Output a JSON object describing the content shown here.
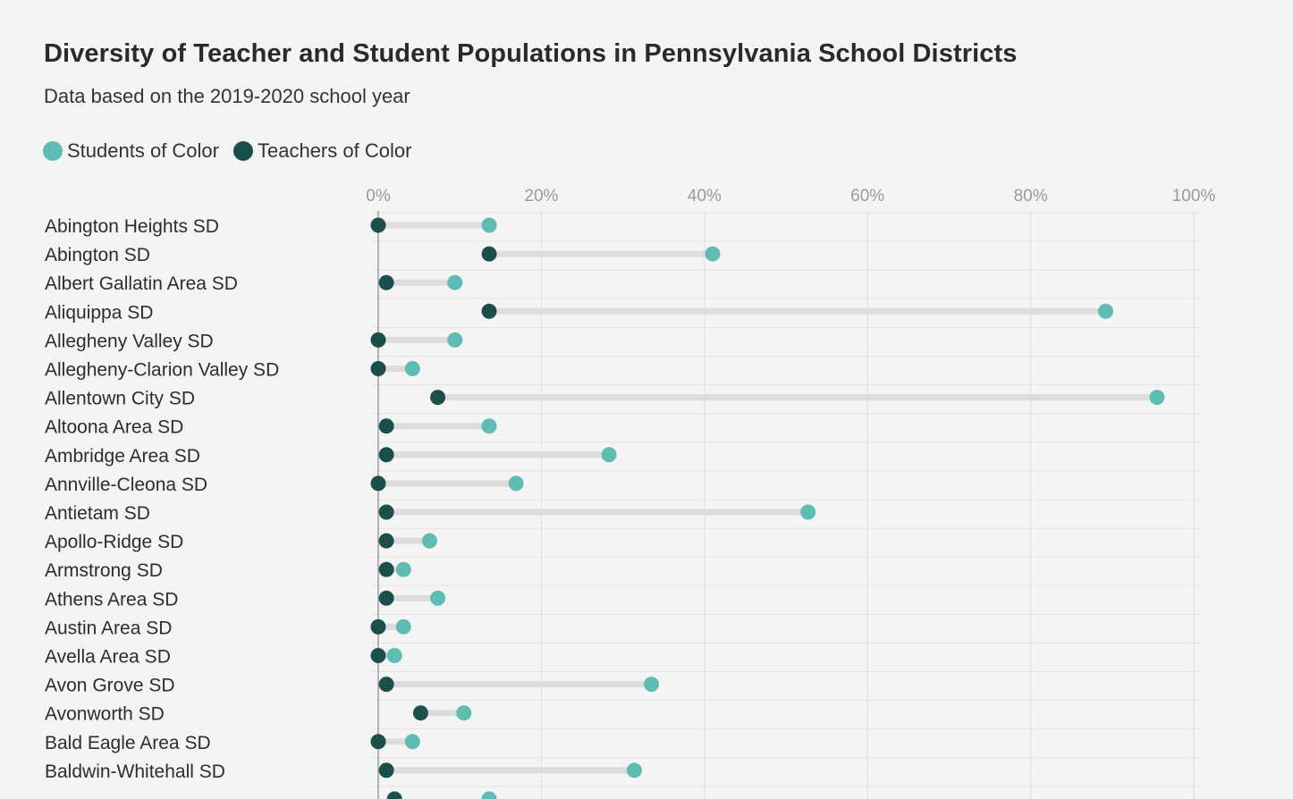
{
  "colors": {
    "students": "#5fbcb2",
    "teachers": "#1c4f4b",
    "connector": "#dcdcdc",
    "grid": "#dddddd",
    "baseline": "#8a8a8a"
  },
  "chart_data": {
    "type": "dumbbell",
    "title": "Diversity of Teacher and Student Populations in Pennsylvania School Districts",
    "subtitle": "Data based on the 2019-2020 school year",
    "legend": [
      "Students of Color",
      "Teachers of Color"
    ],
    "x_ticks": [
      "0%",
      "20%",
      "40%",
      "60%",
      "80%",
      "100%"
    ],
    "xlim": [
      0,
      100
    ],
    "categories": [
      "Abington Heights SD",
      "Abington SD",
      "Albert Gallatin Area SD",
      "Aliquippa SD",
      "Allegheny Valley SD",
      "Allegheny-Clarion Valley SD",
      "Allentown City SD",
      "Altoona Area SD",
      "Ambridge Area SD",
      "Annville-Cleona SD",
      "Antietam SD",
      "Apollo-Ridge SD",
      "Armstrong SD",
      "Athens Area SD",
      "Austin Area SD",
      "Avella Area SD",
      "Avon Grove SD",
      "Avonworth SD",
      "Bald Eagle Area SD",
      "Baldwin-Whitehall SD"
    ],
    "series": [
      {
        "name": "Students of Color",
        "values": [
          13.6,
          41.0,
          9.4,
          89.2,
          9.4,
          4.2,
          95.5,
          13.6,
          28.3,
          16.9,
          52.7,
          6.3,
          3.1,
          7.3,
          3.1,
          2.0,
          33.5,
          10.5,
          4.2,
          31.4
        ]
      },
      {
        "name": "Teachers of Color",
        "values": [
          0.0,
          13.6,
          1.0,
          13.6,
          0.0,
          0.0,
          7.3,
          1.0,
          1.0,
          0.0,
          1.0,
          1.0,
          1.0,
          1.0,
          0.0,
          0.0,
          1.0,
          5.2,
          0.0,
          1.0
        ]
      }
    ]
  }
}
